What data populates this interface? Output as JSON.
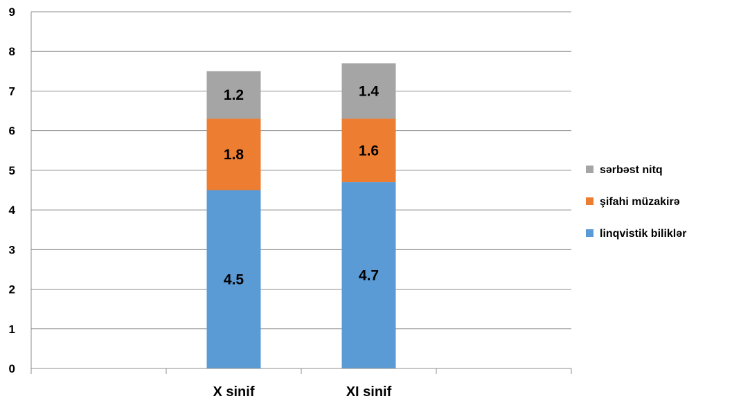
{
  "chart_data": {
    "type": "bar",
    "stacked": true,
    "categories": [
      "X sinif",
      "XI sinif"
    ],
    "category_slots": [
      "",
      "X sinif",
      "XI sinif",
      ""
    ],
    "series": [
      {
        "name": "linqvistik biliklər",
        "values": [
          4.5,
          4.7
        ],
        "color": "#5B9BD5"
      },
      {
        "name": "şifahi müzakirə",
        "values": [
          1.8,
          1.6
        ],
        "color": "#ED7D31"
      },
      {
        "name": "sərbəst nitq",
        "values": [
          1.2,
          1.4
        ],
        "color": "#A5A5A5"
      }
    ],
    "ylim": [
      0,
      9
    ],
    "yticks": [
      0,
      1,
      2,
      3,
      4,
      5,
      6,
      7,
      8,
      9
    ],
    "grid": true,
    "legend_position": "right",
    "legend_order": [
      "sərbəst nitq",
      "şifahi müzakirə",
      "linqvistik biliklər"
    ],
    "title": "",
    "xlabel": "",
    "ylabel": ""
  }
}
